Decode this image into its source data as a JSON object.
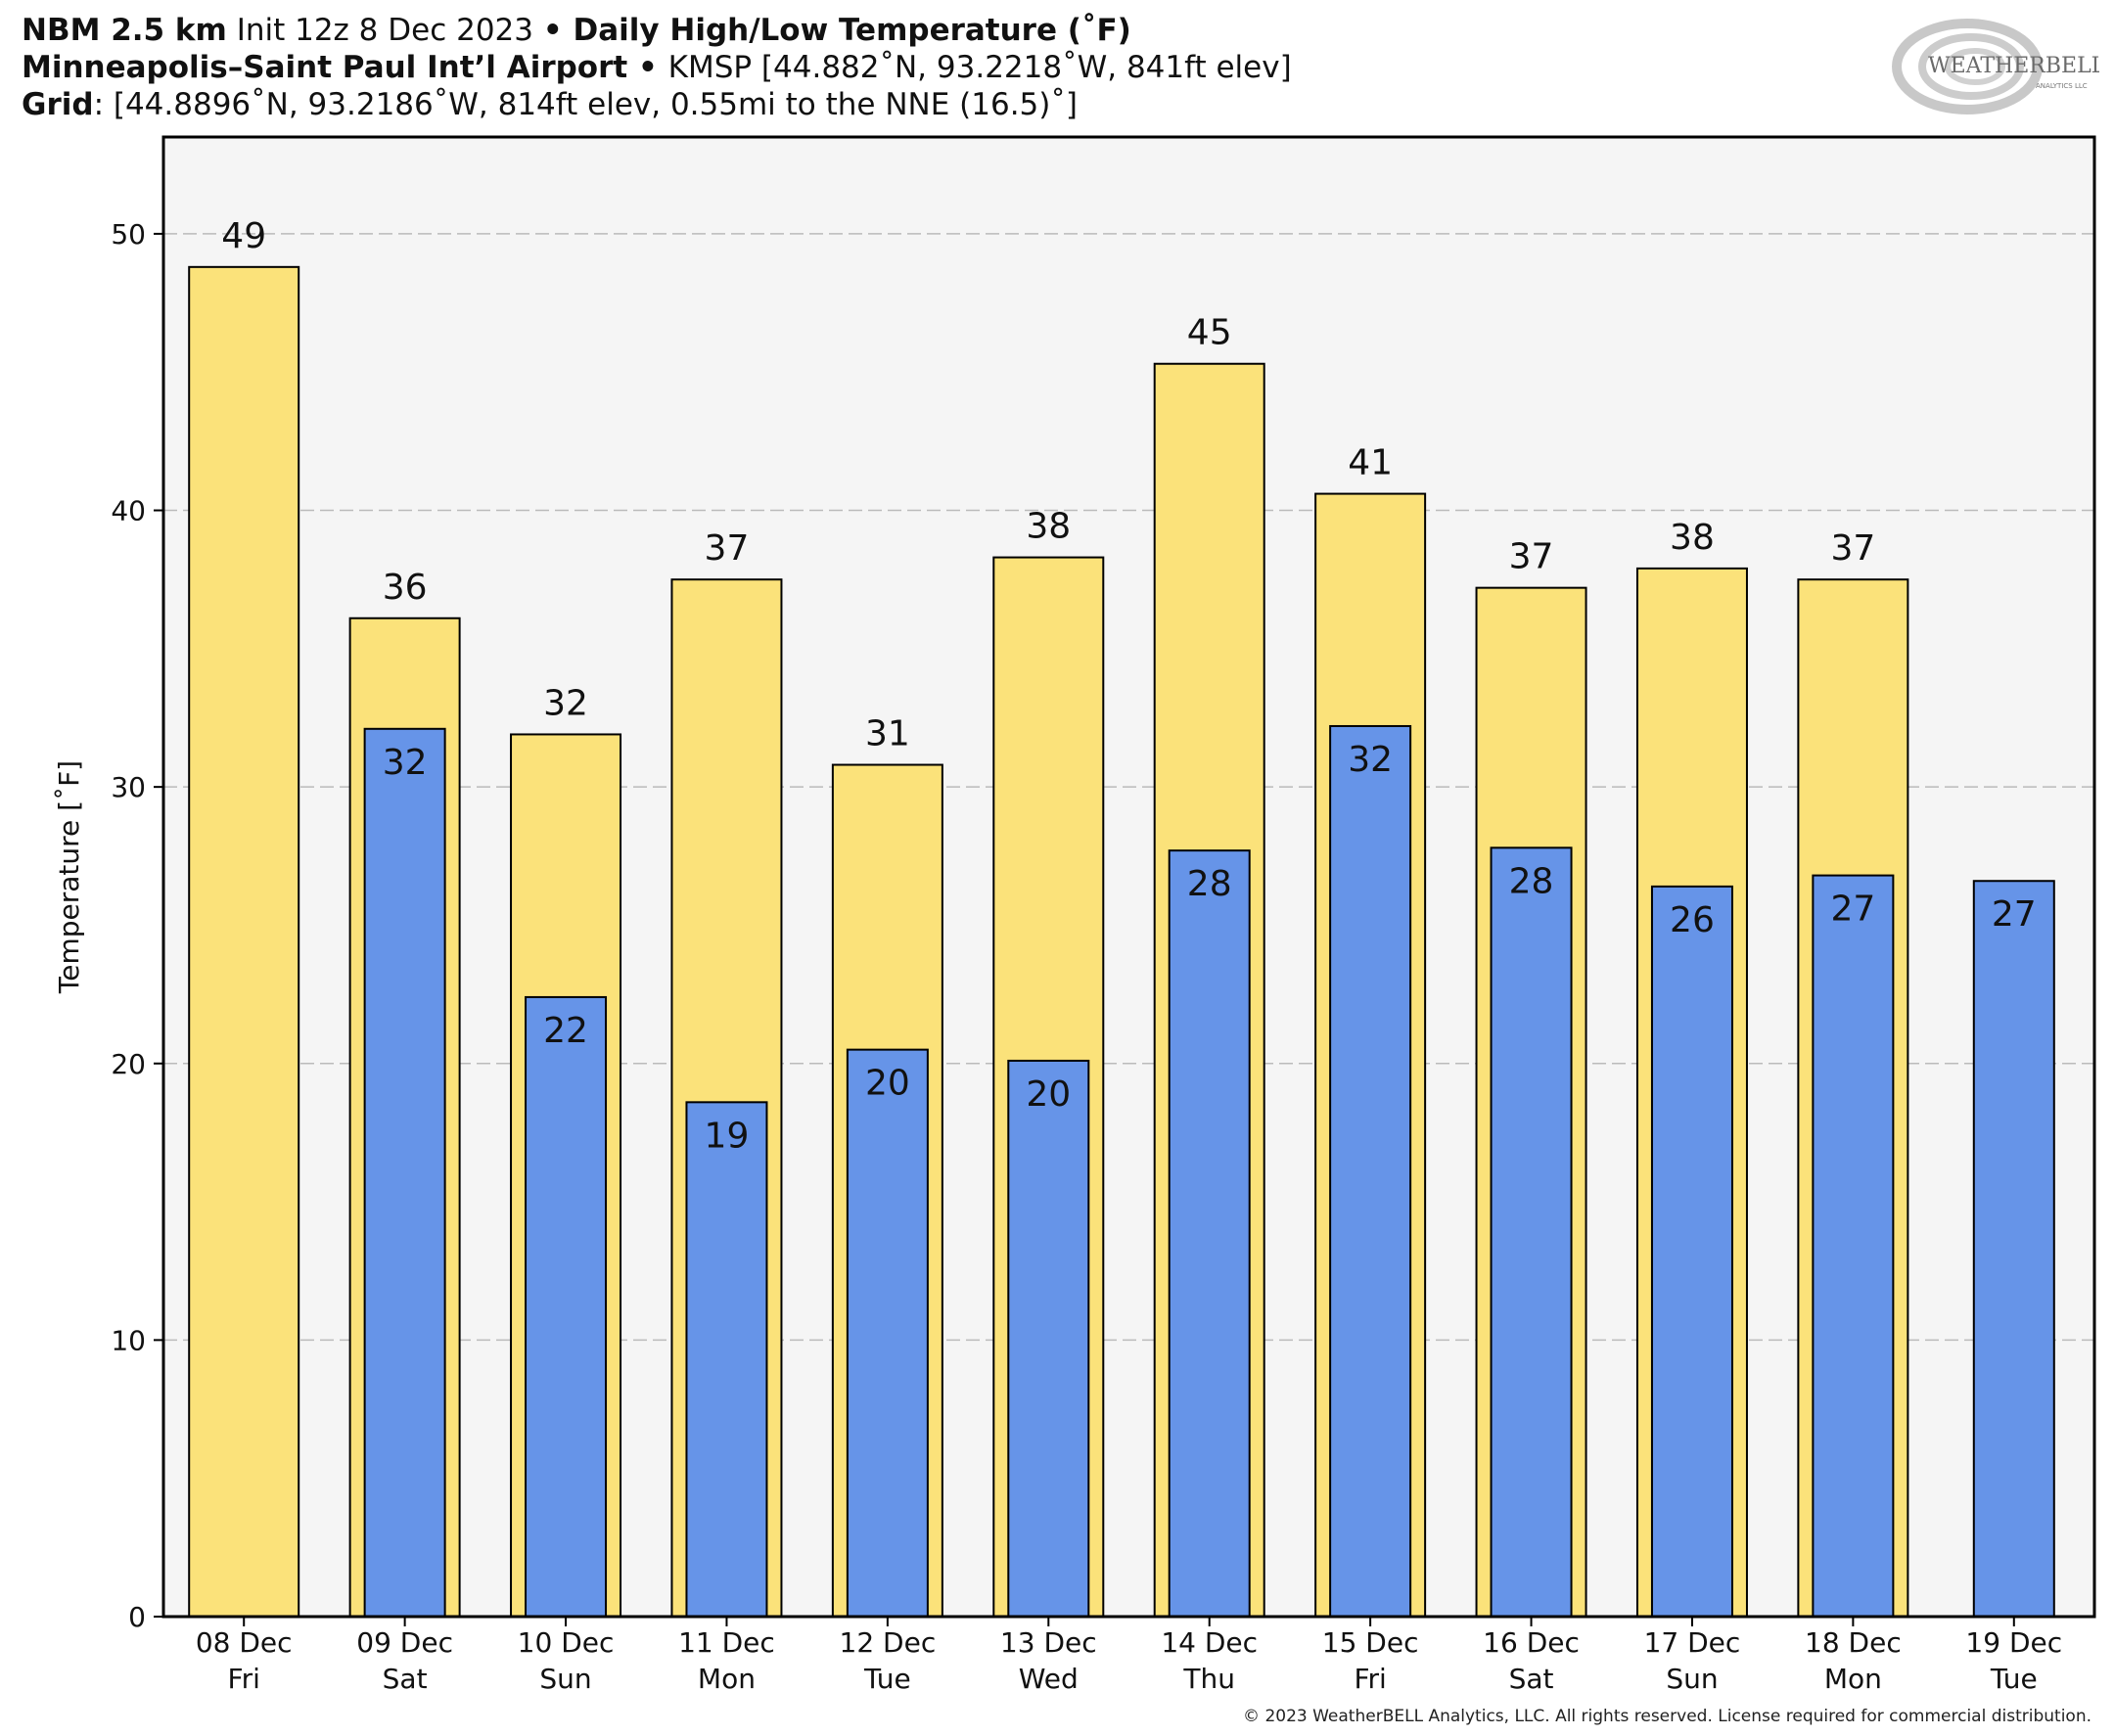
{
  "header": {
    "line1": {
      "model": "NBM 2.5 km",
      "init": " Init 12z 8 Dec 2023 ",
      "sep": "•",
      "product": " Daily High/Low Temperature (˚F)"
    },
    "line2": {
      "station": "Minneapolis–Saint Paul Int’l Airport",
      "sep": " • ",
      "details": "KMSP [44.882˚N, 93.2218˚W, 841ft elev]"
    },
    "line3": {
      "label": "Grid",
      "details": ": [44.8896˚N, 93.2186˚W, 814ft elev, 0.55mi to the NNE (16.5)˚]"
    }
  },
  "logo": {
    "text": "WEATHERBELL",
    "subtext": "ANALYTICS LLC"
  },
  "copyright": "© 2023 WeatherBELL Analytics, LLC. All rights reserved. License required for commercial distribution.",
  "colors": {
    "high": "#fbe27a",
    "low": "#6694e8",
    "plot_bg": "#f5f5f5",
    "grid": "#bbbbbb",
    "edge": "#000000"
  },
  "chart_data": {
    "type": "bar",
    "title": "Daily High/Low Temperature (˚F)",
    "ylabel": "Temperature [˚F]",
    "ylim": [
      0,
      53.5
    ],
    "yticks": [
      0,
      10,
      20,
      30,
      40,
      50
    ],
    "grid": true,
    "categories": [
      [
        "08 Dec",
        "Fri"
      ],
      [
        "09 Dec",
        "Sat"
      ],
      [
        "10 Dec",
        "Sun"
      ],
      [
        "11 Dec",
        "Mon"
      ],
      [
        "12 Dec",
        "Tue"
      ],
      [
        "13 Dec",
        "Wed"
      ],
      [
        "14 Dec",
        "Thu"
      ],
      [
        "15 Dec",
        "Fri"
      ],
      [
        "16 Dec",
        "Sat"
      ],
      [
        "17 Dec",
        "Sun"
      ],
      [
        "18 Dec",
        "Mon"
      ],
      [
        "19 Dec",
        "Tue"
      ]
    ],
    "series": [
      {
        "key": "high",
        "values": [
          48.8,
          36.1,
          31.9,
          37.5,
          30.8,
          38.3,
          45.3,
          40.6,
          37.2,
          37.9,
          37.5,
          null
        ],
        "labels": [
          "49",
          "36",
          "32",
          "37",
          "31",
          "38",
          "45",
          "41",
          "37",
          "38",
          "37",
          ""
        ]
      },
      {
        "key": "low",
        "values": [
          null,
          32.1,
          22.4,
          18.6,
          20.5,
          20.1,
          27.7,
          32.2,
          27.8,
          26.4,
          26.8,
          26.6
        ],
        "labels": [
          "",
          "32",
          "22",
          "19",
          "20",
          "20",
          "28",
          "32",
          "28",
          "26",
          "27",
          "27"
        ]
      }
    ]
  }
}
